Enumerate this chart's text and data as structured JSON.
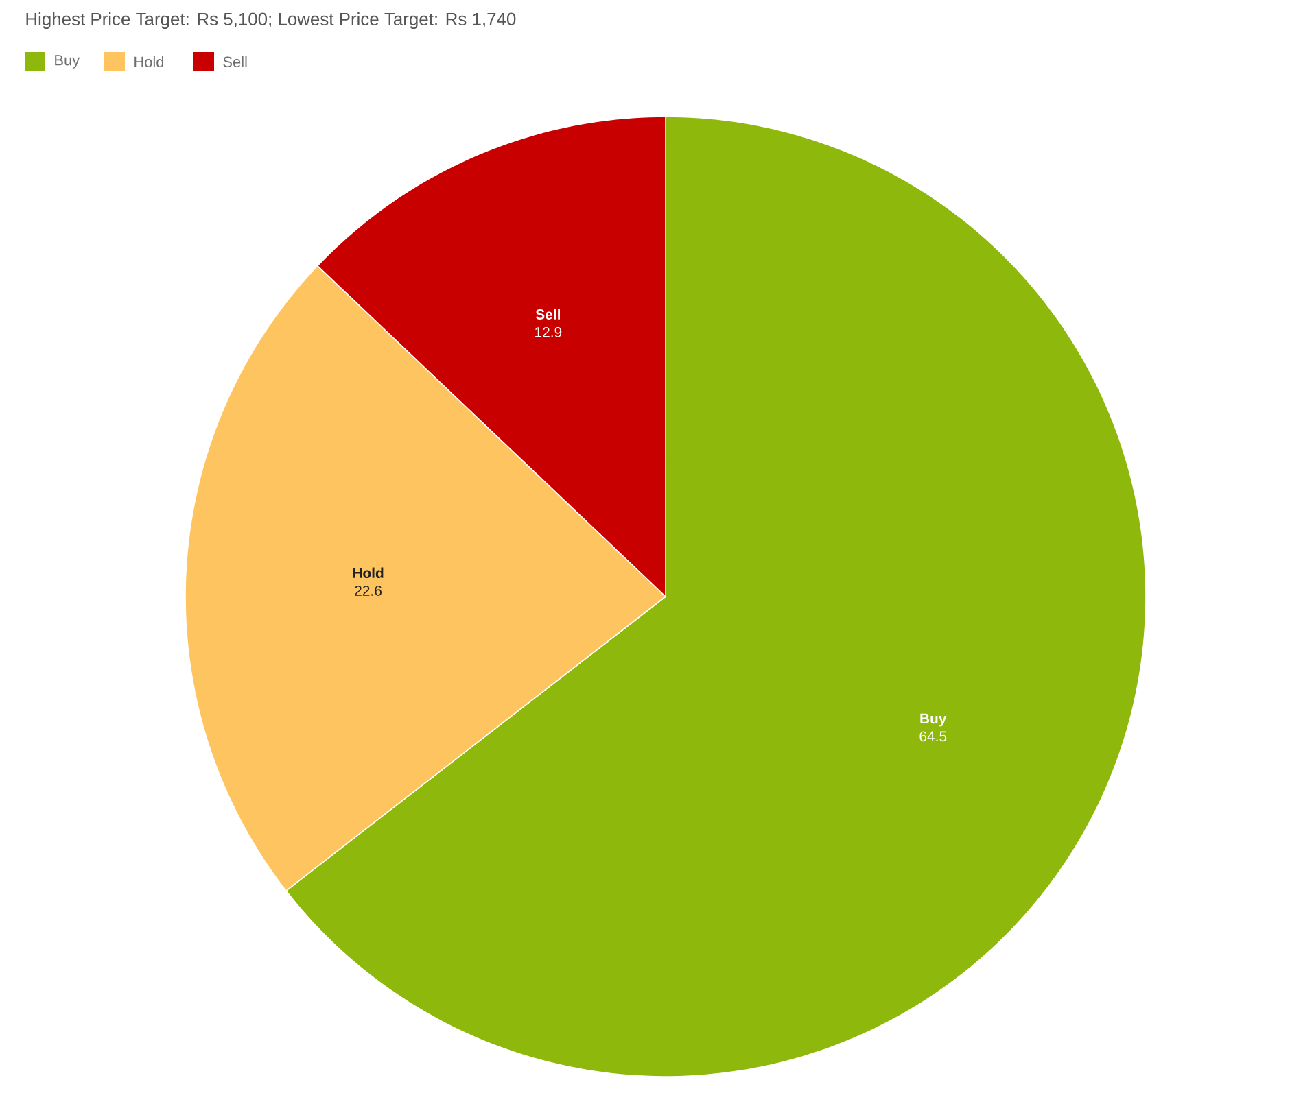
{
  "chart_data": {
    "type": "pie",
    "title": "Highest Price Target: Rs 5,100; Lowest Price Target: Rs 1,740",
    "categories": [
      "Buy",
      "Hold",
      "Sell"
    ],
    "values": [
      64.5,
      22.6,
      12.9
    ],
    "colors": [
      "#8fb80c",
      "#fec45f",
      "#c80000"
    ],
    "legend": "top left",
    "data_labels": true
  }
}
